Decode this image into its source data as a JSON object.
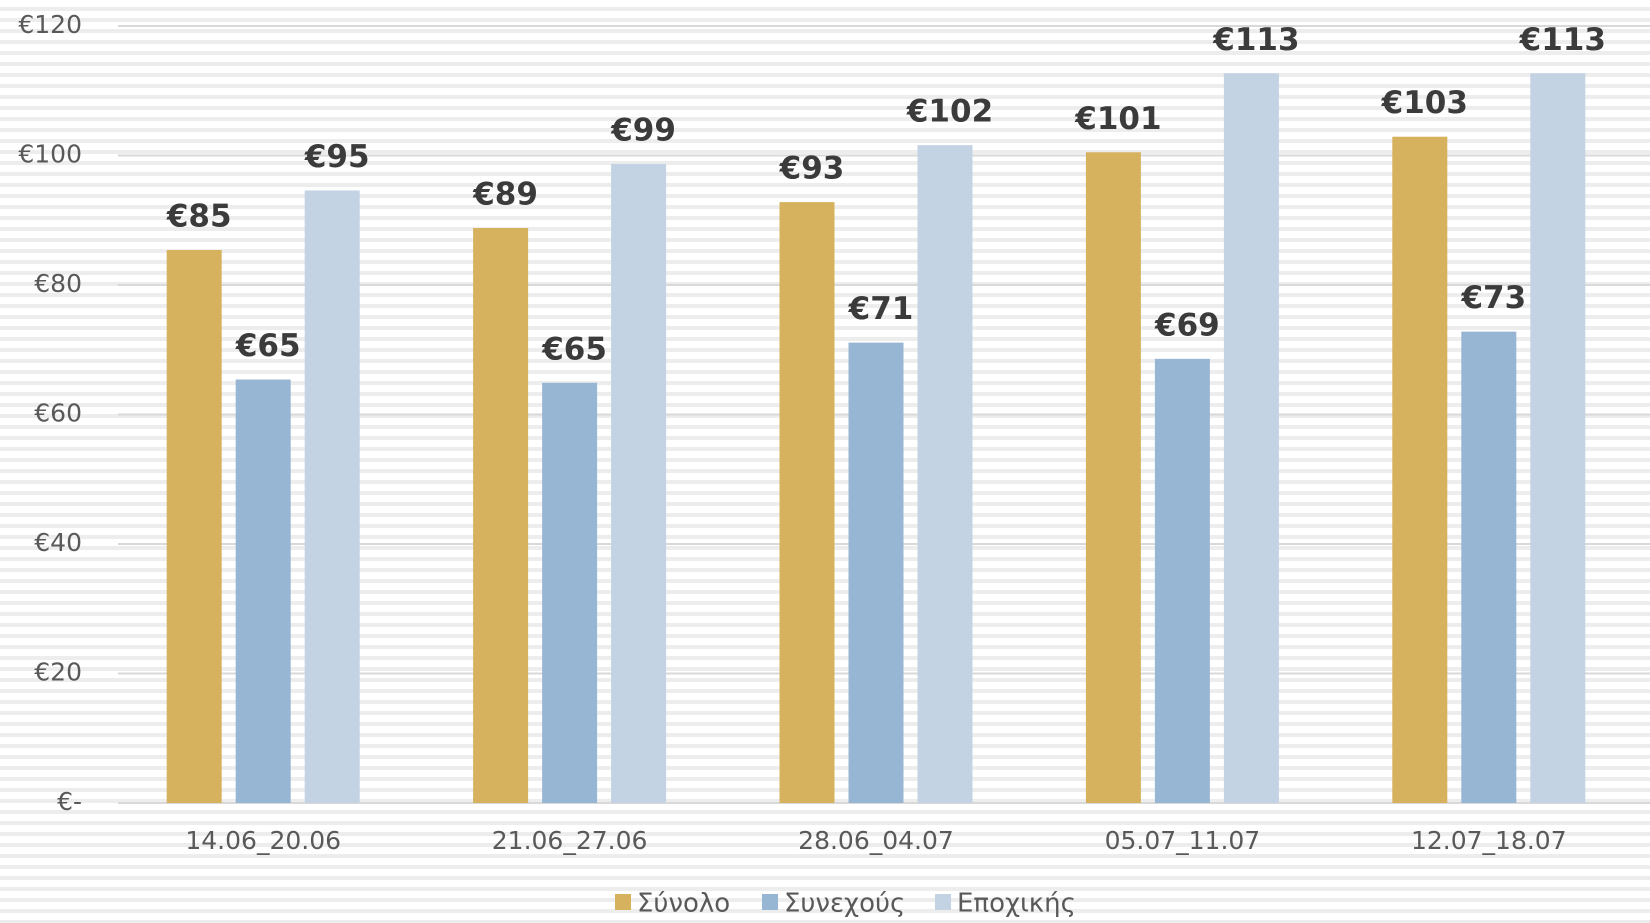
{
  "chart_data": {
    "type": "bar",
    "categories": [
      "14.06_20.06",
      "21.06_27.06",
      "28.06_04.07",
      "05.07_11.07",
      "12.07_18.07"
    ],
    "series": [
      {
        "name": "Σύνολο",
        "color": "#d6b25e",
        "values": [
          85.4,
          88.8,
          92.8,
          100.5,
          102.9
        ],
        "value_labels": [
          "€85",
          "€89",
          "€93",
          "€101",
          "€103"
        ]
      },
      {
        "name": "Συνεχούς",
        "color": "#97b6d3",
        "values": [
          65.4,
          64.9,
          71.1,
          68.6,
          72.8
        ],
        "value_labels": [
          "€65",
          "€65",
          "€71",
          "€69",
          "€73"
        ]
      },
      {
        "name": "Εποχικής",
        "color": "#c3d3e4",
        "values": [
          94.6,
          98.7,
          101.6,
          112.7,
          112.7
        ],
        "value_labels": [
          "€95",
          "€99",
          "€102",
          "€113",
          "€113"
        ]
      }
    ],
    "ylim": [
      0,
      120
    ],
    "yticks": [
      {
        "value": 0,
        "label": "€-"
      },
      {
        "value": 20,
        "label": "€20"
      },
      {
        "value": 40,
        "label": "€40"
      },
      {
        "value": 60,
        "label": "€60"
      },
      {
        "value": 80,
        "label": "€80"
      },
      {
        "value": 100,
        "label": "€100"
      },
      {
        "value": 120,
        "label": "€120"
      }
    ],
    "grid": true,
    "legend": "bottom"
  }
}
